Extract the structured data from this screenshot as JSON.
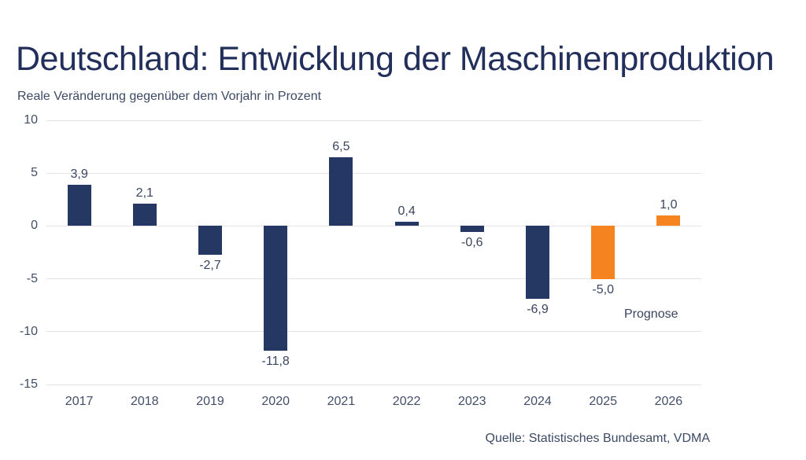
{
  "page": {
    "title": "Deutschland: Entwicklung der Maschinenproduktion",
    "subtitle": "Reale Veränderung gegenüber dem Vorjahr in Prozent",
    "source": "Quelle: Statistisches Bundesamt, VDMA",
    "annotation": "Prognose"
  },
  "colors": {
    "bar_actual": "#253763",
    "bar_forecast": "#F5831F",
    "title_text": "#222F5B",
    "subtitle_text": "#3C4964",
    "axis_text": "#424E68",
    "label_text": "#39455F",
    "source_text": "#3C4964",
    "gridline": "#E2E2E2",
    "background": "#FFFFFF"
  },
  "chart_data": {
    "type": "bar",
    "title": "Deutschland: Entwicklung der Maschinenproduktion",
    "subtitle": "Reale Veränderung gegenüber dem Vorjahr in Prozent",
    "categories": [
      "2017",
      "2018",
      "2019",
      "2020",
      "2021",
      "2022",
      "2023",
      "2024",
      "2025",
      "2026"
    ],
    "values": [
      3.9,
      2.1,
      -2.7,
      -11.8,
      6.5,
      0.4,
      -0.6,
      -6.9,
      -5.0,
      1.0
    ],
    "value_labels": [
      "3,9",
      "2,1",
      "-2,7",
      "-11,8",
      "6,5",
      "0,4",
      "-0,6",
      "-6,9",
      "-5,0",
      "1,0"
    ],
    "forecast_indices": [
      8,
      9
    ],
    "forecast_categories": [
      "2025",
      "2026"
    ],
    "annotation": "Prognose",
    "xlabel": "",
    "ylabel": "Reale Veränderung gegenüber dem Vorjahr in Prozent",
    "ylim": [
      -15,
      10
    ],
    "yticks": [
      10,
      5,
      0,
      -5,
      -10,
      -15
    ],
    "grid": true,
    "legend_position": "none",
    "source": "Quelle: Statistisches Bundesamt, VDMA"
  }
}
